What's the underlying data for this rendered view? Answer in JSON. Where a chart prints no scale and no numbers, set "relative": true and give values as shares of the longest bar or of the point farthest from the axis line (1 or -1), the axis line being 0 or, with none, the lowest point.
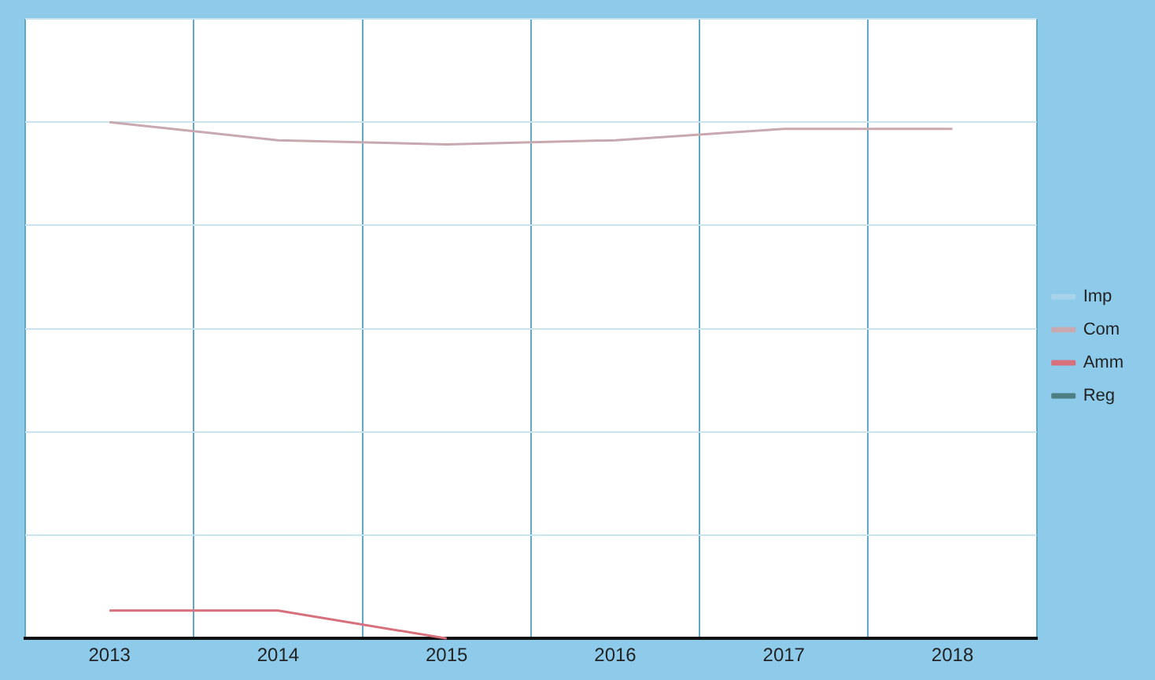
{
  "chart_data": {
    "type": "line",
    "relative": true,
    "categories": [
      "2013",
      "2014",
      "2015",
      "2016",
      "2017",
      "2018"
    ],
    "series": [
      {
        "name": "Imp",
        "color": "#a9d3ea",
        "values": [
          null,
          null,
          null,
          null,
          null,
          null
        ]
      },
      {
        "name": "Com",
        "color": "#c9a9b0",
        "values": [
          1,
          0.965,
          0.957,
          0.965,
          0.987,
          0.987
        ]
      },
      {
        "name": "Amm",
        "color": "#d8707c",
        "values": [
          0.054,
          0.054,
          0,
          null,
          null,
          null
        ]
      },
      {
        "name": "Reg",
        "color": "#4e7f82",
        "values": [
          null,
          null,
          null,
          null,
          null,
          null
        ]
      }
    ],
    "grid": true,
    "legend": "right",
    "marker": "none",
    "line_style": "solid"
  }
}
